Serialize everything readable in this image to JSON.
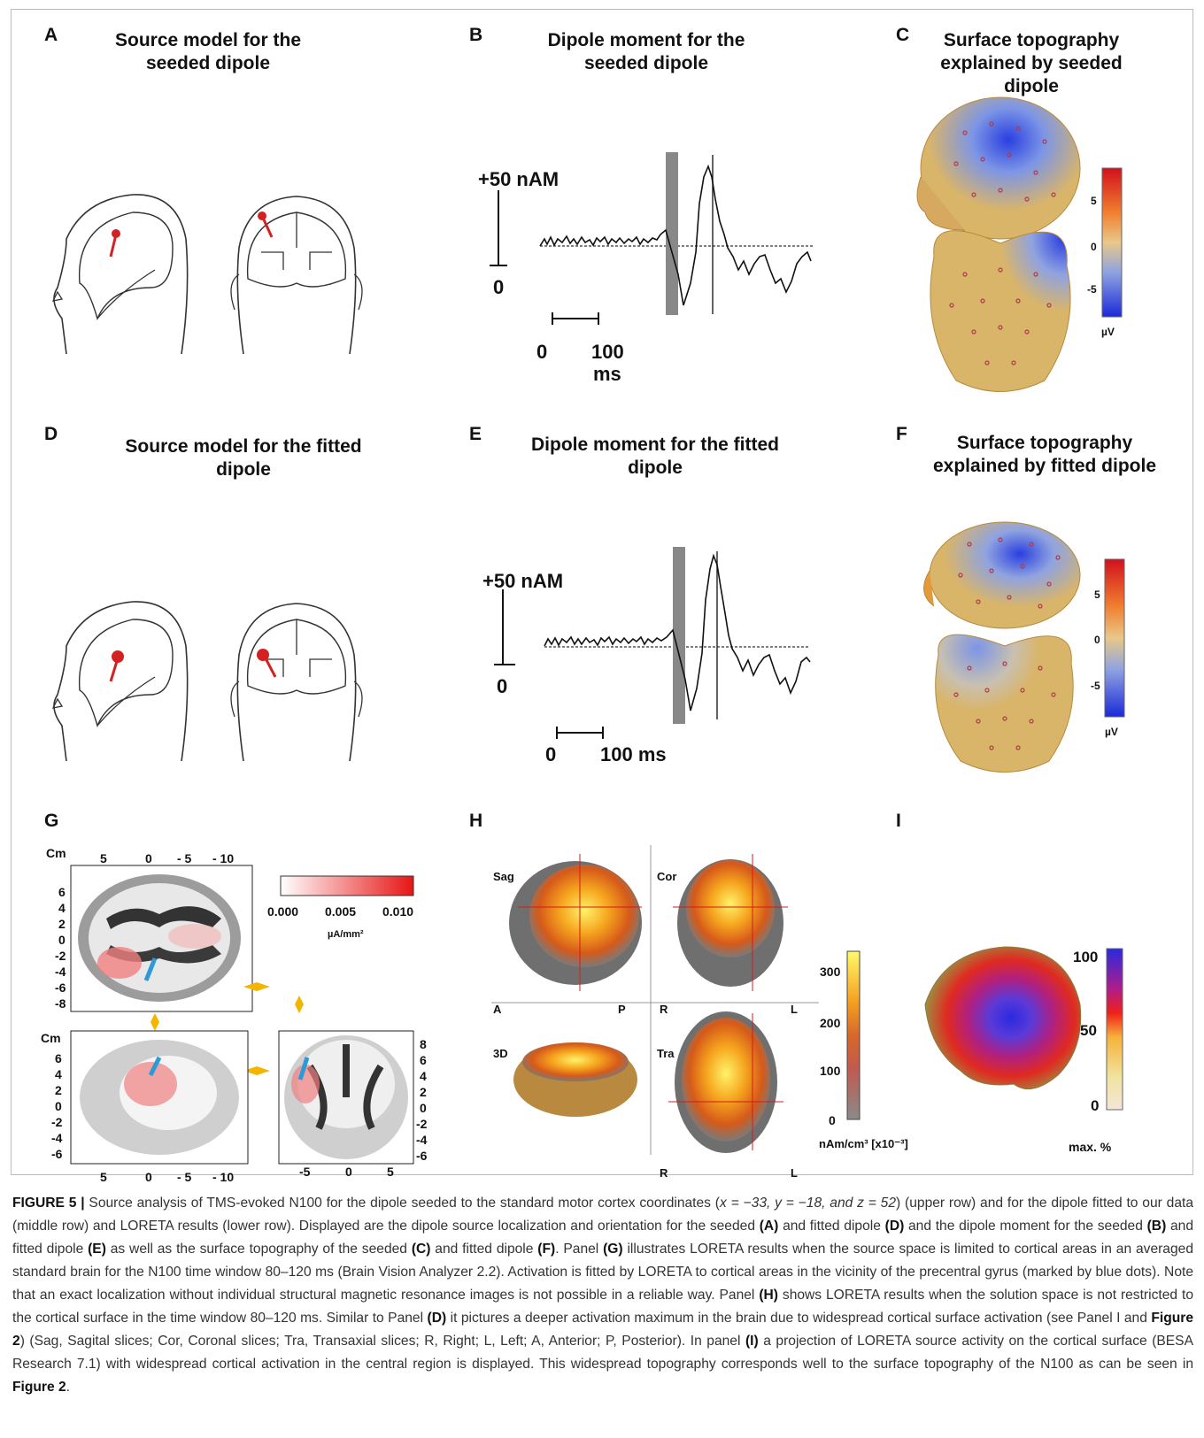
{
  "panels": {
    "A": {
      "label": "A",
      "title": "Source model for the seeded dipole"
    },
    "B": {
      "label": "B",
      "title": "Dipole moment for the seeded dipole",
      "scale_top": "+50 nAM",
      "scale_bottom": "0",
      "time_left": "0",
      "time_right": "100",
      "time_unit": "ms"
    },
    "C": {
      "label": "C",
      "title": "Surface topography explained by seeded dipole",
      "colorbar_ticks": [
        "5",
        "0",
        "-5"
      ],
      "unit": "µV"
    },
    "D": {
      "label": "D",
      "title": "Source model for the fitted dipole"
    },
    "E": {
      "label": "E",
      "title": "Dipole moment for the fitted dipole",
      "scale_top": "+50 nAM",
      "scale_bottom": "0",
      "time_left": "0",
      "time_right": "100 ms"
    },
    "F": {
      "label": "F",
      "title": "Surface topography explained by fitted dipole",
      "colorbar_ticks": [
        "5",
        "0",
        "-5"
      ],
      "unit": "µV"
    },
    "G": {
      "label": "G",
      "unit_label": "Cm",
      "colorbar_ticks": [
        "0.000",
        "0.005",
        "0.010"
      ],
      "colorbar_unit": "µA/mm²",
      "top_x_ticks": [
        "5",
        "0",
        "- 5",
        "- 10"
      ],
      "top_y_ticks": [
        "6",
        "4",
        "2",
        "0",
        "-2",
        "-4",
        "-6",
        "-8"
      ],
      "bl_y_ticks": [
        "6",
        "4",
        "2",
        "0",
        "-2",
        "-4",
        "-6"
      ],
      "bl_x_ticks": [
        "5",
        "0",
        "- 5",
        "- 10"
      ],
      "br_y_ticks": [
        "8",
        "6",
        "4",
        "2",
        "0",
        "-2",
        "-4",
        "-6"
      ],
      "br_x_ticks": [
        "-5",
        "0",
        "5"
      ]
    },
    "H": {
      "label": "H",
      "sag": "Sag",
      "cor": "Cor",
      "d3": "3D",
      "tra": "Tra",
      "A": "A",
      "P": "P",
      "R1": "R",
      "L1": "L",
      "R2": "R",
      "L2": "L",
      "colorbar_ticks": [
        "300",
        "200",
        "100",
        "0"
      ],
      "colorbar_unit": "nAm/cm³ [x10⁻³]"
    },
    "I": {
      "label": "I",
      "colorbar_ticks": [
        "100",
        "50",
        "0"
      ],
      "colorbar_unit": "max. %"
    }
  },
  "caption": {
    "fig": "FIGURE 5 |",
    "t1": " Source analysis of TMS-evoked N100 for the dipole seeded to the standard motor cortex coordinates (",
    "coords": "x = −33, y = −18, and z = 52",
    "t2": ") (upper row) and for the dipole fitted to our data (middle row) and LORETA results (lower row). Displayed are the dipole source localization and orientation for the seeded ",
    "rA": "(A)",
    "t3": " and fitted dipole ",
    "rD": "(D)",
    "t4": " and the dipole moment for the seeded ",
    "rB": "(B)",
    "t5": " and fitted dipole ",
    "rE": "(E)",
    "t6": " as well as the surface topography of the seeded ",
    "rC": "(C)",
    "t7": " and fitted dipole ",
    "rF": "(F)",
    "t8": ". Panel ",
    "rG": "(G)",
    "t9": " illustrates LORETA results when the source space is limited to cortical areas in an averaged standard brain for the N100 time window 80–120 ms (Brain Vision Analyzer 2.2). Activation is fitted by LORETA to cortical areas in the vicinity of the precentral gyrus (marked by blue dots). Note that an exact localization without individual structural magnetic resonance images is not possible in a reliable way. Panel ",
    "rH": "(H)",
    "t10": " shows LORETA results when the solution space is not restricted to the cortical surface in the time window 80–120 ms. Similar to Panel ",
    "rD2": "(D)",
    "t11": " it pictures a deeper activation maximum in the brain due to widespread cortical surface activation (see Panel I and ",
    "rFig2a": "Figure 2",
    "t12": ") (Sag, Sagital slices; Cor, Coronal slices; Tra, Transaxial slices; R, Right; L, Left; A, Anterior; P, Posterior). In panel ",
    "rI": "(I)",
    "t13": " a projection of LORETA source activity on the cortical surface (BESA Research 7.1) with widespread cortical activation in the central region is displayed. This widespread topography corresponds well to the surface topography of the N100 as can be seen in ",
    "rFig2b": "Figure 2",
    "t14": "."
  }
}
